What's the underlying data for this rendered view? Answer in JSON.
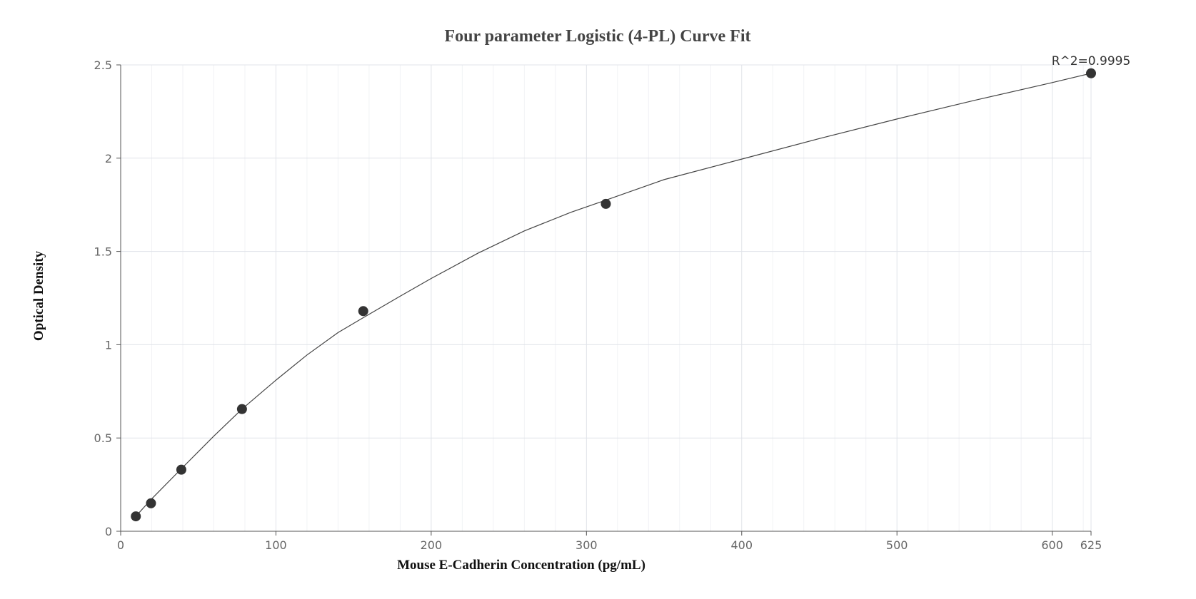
{
  "chart_data": {
    "type": "scatter",
    "title": "Four parameter Logistic (4-PL) Curve Fit",
    "xlabel": "Mouse E-Cadherin Concentration (pg/mL)",
    "ylabel": "Optical Density",
    "xlim": [
      0,
      625
    ],
    "ylim": [
      0,
      2.5
    ],
    "x_ticks": [
      0,
      100,
      200,
      300,
      400,
      500,
      600,
      625
    ],
    "y_ticks": [
      0,
      0.5,
      1,
      1.5,
      2,
      2.5
    ],
    "x_tick_labels": [
      "0",
      "100",
      "200",
      "300",
      "400",
      "500",
      "600",
      "625"
    ],
    "y_tick_labels": [
      "0",
      "0.5",
      "1",
      "1.5",
      "2",
      "2.5"
    ],
    "grid": true,
    "series": [
      {
        "points": {
          "x": [
            9.77,
            19.53,
            39.06,
            78.13,
            156.25,
            312.5,
            625
          ],
          "y": [
            0.08,
            0.15,
            0.33,
            0.655,
            1.18,
            1.755,
            2.455
          ]
        },
        "fit_curve": {
          "x": [
            9.77,
            19.53,
            39.06,
            60,
            78.13,
            100,
            120,
            140,
            156.25,
            180,
            200,
            230,
            260,
            290,
            312.5,
            350,
            400,
            450,
            500,
            550,
            600,
            625
          ],
          "y": [
            0.08,
            0.17,
            0.335,
            0.51,
            0.655,
            0.81,
            0.945,
            1.065,
            1.145,
            1.26,
            1.355,
            1.49,
            1.61,
            1.71,
            1.775,
            1.885,
            1.995,
            2.105,
            2.21,
            2.31,
            2.405,
            2.455
          ]
        },
        "color": "#333333"
      }
    ],
    "annotations": [
      {
        "text": "R^2=0.9995",
        "x": 625,
        "y": 2.455
      }
    ]
  }
}
